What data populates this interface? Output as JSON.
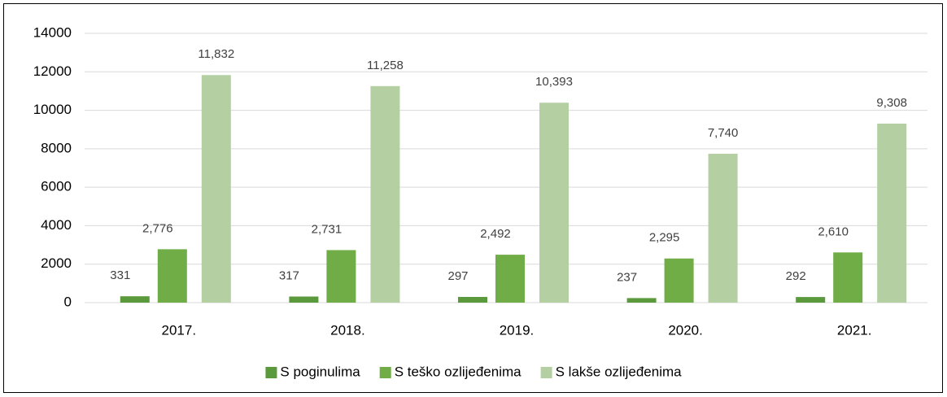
{
  "chart_data": {
    "type": "bar",
    "categories": [
      "2017.",
      "2018.",
      "2019.",
      "2020.",
      "2021."
    ],
    "series": [
      {
        "name": "S poginulima",
        "color": "#5b9a3c",
        "values": [
          331,
          317,
          297,
          237,
          292
        ],
        "value_labels": [
          "331",
          "317",
          "297",
          "237",
          "292"
        ]
      },
      {
        "name": "S teško ozlijeđenima",
        "color": "#70ad47",
        "values": [
          2776,
          2731,
          2492,
          2295,
          2610
        ],
        "value_labels": [
          "2,776",
          "2,731",
          "2,492",
          "2,295",
          "2,610"
        ]
      },
      {
        "name": "S lakše ozlijeđenima",
        "color": "#b4d0a2",
        "values": [
          11832,
          11258,
          10393,
          7740,
          9308
        ],
        "value_labels": [
          "11,832",
          "11,258",
          "10,393",
          "7,740",
          "9,308"
        ]
      }
    ],
    "ylim": [
      0,
      14000
    ],
    "yticks": [
      0,
      2000,
      4000,
      6000,
      8000,
      10000,
      12000,
      14000
    ],
    "grid": true,
    "legend": "bottom"
  }
}
